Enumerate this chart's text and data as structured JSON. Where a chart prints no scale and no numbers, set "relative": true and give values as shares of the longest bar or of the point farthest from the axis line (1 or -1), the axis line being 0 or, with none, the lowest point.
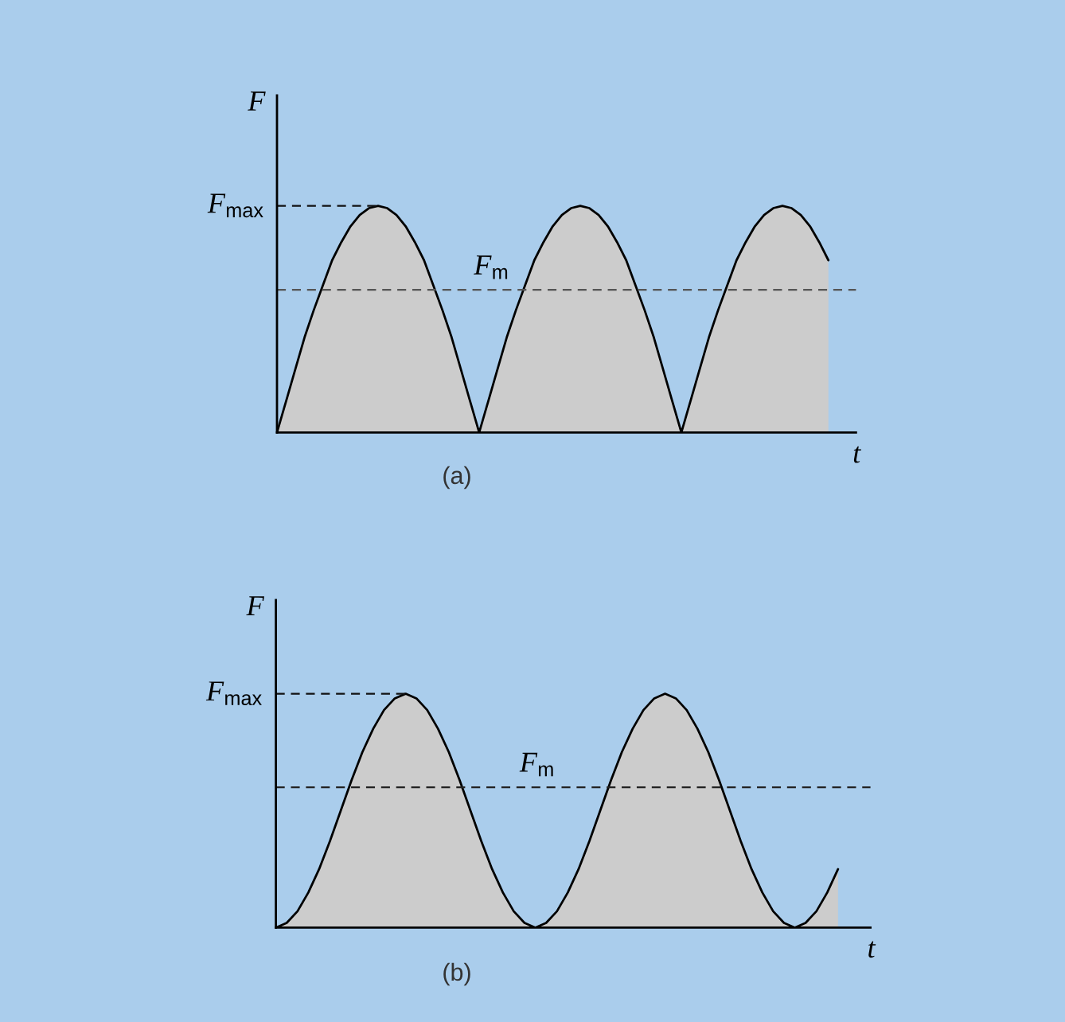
{
  "chart_data": [
    {
      "type": "area",
      "relative": true,
      "ylabel": "F",
      "xlabel": "t",
      "color": "#cccccc",
      "categories": [
        null,
        null,
        null,
        null,
        null,
        null,
        null,
        null,
        null,
        null,
        null,
        null,
        null,
        null,
        null,
        null,
        null,
        null,
        null,
        null,
        null,
        null,
        null,
        null,
        null,
        null,
        null,
        null,
        null,
        null,
        null,
        null,
        null,
        null,
        null,
        null,
        null,
        null,
        null,
        null,
        null,
        null,
        null,
        null,
        null,
        null,
        null,
        null,
        null,
        null,
        null,
        null,
        null,
        null,
        null,
        null,
        null,
        null,
        null,
        null,
        null,
        null,
        null,
        null
      ],
      "values": [
        0,
        0.14,
        0.28,
        0.42,
        0.54,
        0.65,
        0.76,
        0.84,
        0.91,
        0.96,
        0.99,
        1,
        0.99,
        0.96,
        0.91,
        0.84,
        0.76,
        0.65,
        0.54,
        0.42,
        0.28,
        0.14,
        0,
        0.14,
        0.28,
        0.42,
        0.54,
        0.65,
        0.76,
        0.84,
        0.91,
        0.96,
        0.99,
        1,
        0.99,
        0.96,
        0.91,
        0.84,
        0.76,
        0.65,
        0.54,
        0.42,
        0.28,
        0.14,
        0,
        0.14,
        0.28,
        0.42,
        0.54,
        0.65,
        0.76,
        0.84,
        0.91,
        0.96,
        0.99,
        1,
        0.99,
        0.96,
        0.91,
        0.84,
        0.76,
        null,
        null,
        null
      ],
      "ref_lines": [
        {
          "axis": "y",
          "value": 1,
          "label": "F$_{max}$",
          "line_style": "dashed",
          "color": "#111111"
        },
        {
          "axis": "y",
          "value": 0.63,
          "label": "F$_{m}$",
          "line_style": "dashed",
          "color": "#555555"
        }
      ],
      "annotations": [
        "(a)"
      ]
    },
    {
      "type": "area",
      "relative": true,
      "ylabel": "F",
      "xlabel": "t",
      "color": "#cccccc",
      "categories": [
        null,
        null,
        null,
        null,
        null,
        null,
        null,
        null,
        null,
        null,
        null,
        null,
        null,
        null,
        null,
        null,
        null,
        null,
        null,
        null,
        null,
        null,
        null,
        null,
        null,
        null,
        null,
        null,
        null,
        null,
        null,
        null,
        null,
        null,
        null,
        null,
        null,
        null,
        null,
        null,
        null,
        null,
        null,
        null,
        null,
        null,
        null,
        null,
        null,
        null,
        null,
        null,
        null,
        null,
        null,
        null
      ],
      "values": [
        0,
        0.02,
        0.07,
        0.15,
        0.25,
        0.37,
        0.5,
        0.63,
        0.75,
        0.85,
        0.93,
        0.98,
        1,
        0.98,
        0.93,
        0.85,
        0.75,
        0.63,
        0.5,
        0.37,
        0.25,
        0.15,
        0.07,
        0.02,
        0,
        0.02,
        0.07,
        0.15,
        0.25,
        0.37,
        0.5,
        0.63,
        0.75,
        0.85,
        0.93,
        0.98,
        1,
        0.98,
        0.93,
        0.85,
        0.75,
        0.63,
        0.5,
        0.37,
        0.25,
        0.15,
        0.07,
        0.02,
        0,
        0.02,
        0.07,
        0.15,
        0.25,
        null,
        null,
        null
      ],
      "ref_lines": [
        {
          "axis": "y",
          "value": 1,
          "label": "F$_{max}$",
          "line_style": "dashed",
          "color": "#111111"
        },
        {
          "axis": "y",
          "value": 0.6,
          "label": "F$_{m}$",
          "line_style": "dashed",
          "color": "#222222"
        }
      ],
      "annotations": [
        "(b)"
      ]
    }
  ]
}
